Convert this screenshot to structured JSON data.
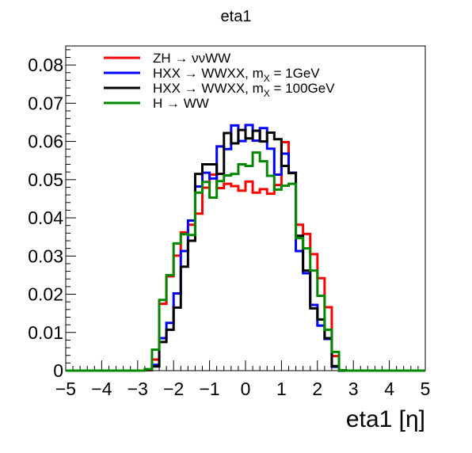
{
  "chart_data": {
    "type": "line",
    "title": "eta1",
    "xlabel": "eta1 [η]",
    "ylabel": "",
    "xlim": [
      -5,
      5
    ],
    "ylim": [
      0,
      0.085
    ],
    "grid": false,
    "legend_position": "top-left",
    "x_ticks": [
      {
        "value": -5,
        "label": "−5"
      },
      {
        "value": -4,
        "label": "−4"
      },
      {
        "value": -3,
        "label": "−3"
      },
      {
        "value": -2,
        "label": "−2"
      },
      {
        "value": -1,
        "label": "−1"
      },
      {
        "value": 0,
        "label": "0"
      },
      {
        "value": 1,
        "label": "1"
      },
      {
        "value": 2,
        "label": "2"
      },
      {
        "value": 3,
        "label": "3"
      },
      {
        "value": 4,
        "label": "4"
      },
      {
        "value": 5,
        "label": "5"
      }
    ],
    "y_ticks": [
      {
        "value": 0,
        "label": "0"
      },
      {
        "value": 0.01,
        "label": "0.01"
      },
      {
        "value": 0.02,
        "label": "0.02"
      },
      {
        "value": 0.03,
        "label": "0.03"
      },
      {
        "value": 0.04,
        "label": "0.04"
      },
      {
        "value": 0.05,
        "label": "0.05"
      },
      {
        "value": 0.06,
        "label": "0.06"
      },
      {
        "value": 0.07,
        "label": "0.07"
      },
      {
        "value": 0.08,
        "label": "0.08"
      }
    ],
    "bin_edges": [
      -5.0,
      -4.8,
      -4.6,
      -4.4,
      -4.2,
      -4.0,
      -3.8,
      -3.6,
      -3.4,
      -3.2,
      -3.0,
      -2.8,
      -2.6,
      -2.4,
      -2.2,
      -2.0,
      -1.8,
      -1.6,
      -1.4,
      -1.2,
      -1.0,
      -0.8,
      -0.6,
      -0.4,
      -0.2,
      0.0,
      0.2,
      0.4,
      0.6,
      0.8,
      1.0,
      1.2,
      1.4,
      1.6,
      1.8,
      2.0,
      2.2,
      2.4,
      2.6,
      2.8,
      3.0,
      3.2,
      3.4,
      3.6,
      3.8,
      4.0,
      4.2,
      4.4,
      4.6,
      4.8,
      5.0
    ],
    "series": [
      {
        "name": "ZH → ννWW",
        "color": "#ff0000",
        "values": [
          0,
          0,
          0,
          0,
          0,
          0,
          0,
          0,
          0,
          0,
          0,
          0.0001,
          0.0029,
          0.0175,
          0.0247,
          0.0301,
          0.0362,
          0.0382,
          0.0411,
          0.0479,
          0.0513,
          0.0478,
          0.0489,
          0.0483,
          0.0471,
          0.0495,
          0.0466,
          0.0475,
          0.0463,
          0.0486,
          0.0598,
          0.0518,
          0.0382,
          0.0358,
          0.0305,
          0.0242,
          0.0166,
          0.0038,
          0.0001,
          0,
          0,
          0,
          0,
          0,
          0,
          0,
          0,
          0,
          0,
          0
        ]
      },
      {
        "name": "HXX → WWXX, m_X = 1GeV",
        "color": "#0000ff",
        "values": [
          0,
          0,
          0,
          0,
          0,
          0,
          0,
          0,
          0,
          0,
          0,
          0.0002,
          0.0015,
          0.0085,
          0.0125,
          0.0202,
          0.0313,
          0.0393,
          0.0482,
          0.0518,
          0.0503,
          0.0587,
          0.058,
          0.0642,
          0.0601,
          0.0643,
          0.0602,
          0.0635,
          0.0581,
          0.0513,
          0.0568,
          0.0518,
          0.0313,
          0.0255,
          0.0172,
          0.0118,
          0.0083,
          0.001,
          0,
          0,
          0,
          0,
          0,
          0,
          0,
          0,
          0,
          0,
          0,
          0
        ]
      },
      {
        "name": "HXX → WWXX, m_X = 100GeV",
        "color": "#000000",
        "values": [
          0,
          0,
          0,
          0,
          0,
          0,
          0,
          0,
          0,
          0,
          0,
          0.0002,
          0.0011,
          0.0075,
          0.0107,
          0.0165,
          0.0272,
          0.034,
          0.0515,
          0.054,
          0.054,
          0.0515,
          0.0622,
          0.0595,
          0.063,
          0.0608,
          0.0628,
          0.06,
          0.0623,
          0.0606,
          0.0536,
          0.0517,
          0.0353,
          0.0262,
          0.0163,
          0.0134,
          0.0085,
          0.0012,
          0,
          0,
          0,
          0,
          0,
          0,
          0,
          0,
          0,
          0,
          0,
          0
        ]
      },
      {
        "name": "H → WW",
        "color": "#008800",
        "values": [
          0,
          0,
          0,
          0,
          0,
          0,
          0,
          0,
          0,
          0,
          0,
          0.0004,
          0.0055,
          0.0185,
          0.025,
          0.0333,
          0.0357,
          0.0355,
          0.0466,
          0.0494,
          0.0453,
          0.0496,
          0.0511,
          0.0515,
          0.054,
          0.0536,
          0.0571,
          0.0548,
          0.051,
          0.0474,
          0.0484,
          0.0489,
          0.0347,
          0.032,
          0.0262,
          0.0196,
          0.0107,
          0.0049,
          0.0001,
          0,
          0,
          0,
          0,
          0,
          0,
          0,
          0,
          0,
          0,
          0
        ]
      }
    ]
  }
}
